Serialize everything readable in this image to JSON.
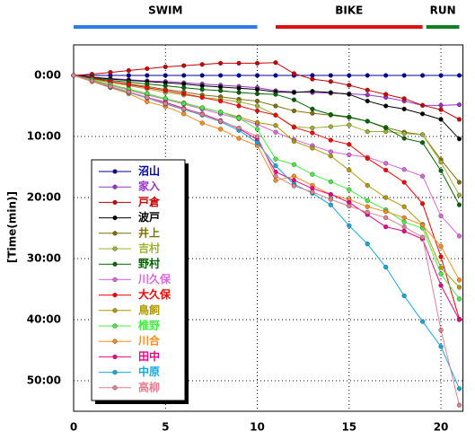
{
  "chart_data": {
    "type": "line",
    "y_label": "[Time(min)]",
    "x": [
      0,
      1,
      2,
      3,
      4,
      5,
      6,
      7,
      8,
      9,
      10,
      11,
      12,
      13,
      14,
      15,
      16,
      17,
      18,
      19,
      20,
      21
    ],
    "xlim": [
      0,
      21.2
    ],
    "xticks": [
      0,
      5,
      10,
      15,
      20
    ],
    "ylim": [
      55,
      -5
    ],
    "yticks": [
      {
        "value": 0,
        "label": "0:00"
      },
      {
        "value": 10,
        "label": "10:00"
      },
      {
        "value": 20,
        "label": "20:00"
      },
      {
        "value": 30,
        "label": "30:00"
      },
      {
        "value": 40,
        "label": "40:00"
      },
      {
        "value": 50,
        "label": "50:00"
      }
    ],
    "grid": true,
    "legend": "left",
    "phases": [
      {
        "name": "SWIM",
        "color": "#2f7be8",
        "start": 0,
        "end": 10
      },
      {
        "name": "BIKE",
        "color": "#e01010",
        "start": 11,
        "end": 19
      },
      {
        "name": "RUN",
        "color": "#108020",
        "start": 19.2,
        "end": 21
      }
    ],
    "series": [
      {
        "name": "沼山",
        "color": "#0000a0",
        "values": [
          0,
          0,
          0,
          0,
          0,
          0,
          0,
          0,
          0,
          0,
          0,
          0,
          0,
          0,
          0,
          0,
          0,
          0,
          0,
          0,
          0,
          0
        ]
      },
      {
        "name": "家入",
        "color": "#9933cc",
        "values": [
          0,
          0.3,
          0.5,
          0.7,
          0.9,
          1.0,
          1.2,
          1.4,
          1.6,
          1.8,
          2.0,
          2.5,
          2.7,
          2.8,
          2.9,
          3.0,
          3.2,
          3.6,
          4.2,
          4.9,
          4.9,
          4.8
        ]
      },
      {
        "name": "戸倉",
        "color": "#cc0000",
        "values": [
          0,
          -0.2,
          -0.5,
          -0.8,
          -1.1,
          -1.4,
          -1.6,
          -1.8,
          -2.0,
          -2.0,
          -2.0,
          -2.1,
          -0.3,
          0.6,
          1.0,
          1.6,
          2.4,
          3.1,
          3.8,
          4.9,
          5.6,
          7.2
        ]
      },
      {
        "name": "波戸",
        "color": "#000000",
        "values": [
          0,
          0.3,
          0.6,
          0.8,
          1.0,
          1.2,
          1.4,
          1.7,
          1.9,
          2.1,
          2.3,
          2.7,
          2.8,
          2.6,
          2.8,
          3.1,
          4.2,
          5.0,
          5.5,
          6.3,
          7.2,
          10.4
        ]
      },
      {
        "name": "井上",
        "color": "#807000",
        "values": [
          0,
          0.5,
          1.0,
          1.4,
          1.8,
          2.3,
          2.7,
          3.2,
          3.5,
          3.9,
          4.2,
          5.0,
          5.8,
          6.2,
          6.5,
          6.9,
          7.5,
          8.5,
          9.3,
          9.7,
          13.8,
          17.5
        ]
      },
      {
        "name": "吉村",
        "color": "#a0b030",
        "values": [
          0,
          0.6,
          1.2,
          1.7,
          2.2,
          2.8,
          3.2,
          3.6,
          3.9,
          4.3,
          5.0,
          6.5,
          8.4,
          8.6,
          8.4,
          8.1,
          9.2,
          9.2,
          9.5,
          9.7,
          14.2,
          19.6
        ]
      },
      {
        "name": "野村",
        "color": "#006400",
        "values": [
          0,
          0.4,
          0.8,
          1.1,
          1.4,
          1.7,
          2.0,
          2.3,
          2.5,
          2.8,
          3.0,
          3.1,
          4.0,
          5.5,
          6.4,
          6.8,
          7.5,
          8.6,
          10.3,
          11.0,
          15.6,
          21.2
        ]
      },
      {
        "name": "川久保",
        "color": "#dd66dd",
        "values": [
          0,
          0.8,
          1.6,
          2.4,
          3.2,
          3.9,
          4.7,
          5.5,
          6.3,
          7.1,
          8.0,
          9.3,
          10.5,
          11.5,
          12.5,
          13.0,
          13.4,
          14.4,
          15.4,
          16.5,
          23.0,
          26.3
        ]
      },
      {
        "name": "大久保",
        "color": "#ff0000",
        "values": [
          0,
          0.5,
          1.0,
          1.5,
          2.0,
          2.5,
          3.0,
          3.6,
          4.2,
          5.0,
          5.8,
          6.5,
          8.5,
          9.4,
          10.6,
          11.3,
          13.6,
          15.5,
          17.5,
          21.0,
          29.7,
          39.9
        ]
      },
      {
        "name": "鳥飼",
        "color": "#b09a00",
        "values": [
          0,
          0.8,
          1.5,
          2.2,
          3.0,
          3.8,
          4.5,
          5.3,
          6.0,
          6.8,
          7.7,
          8.2,
          10.8,
          11.9,
          13.2,
          15.5,
          18.0,
          20.0,
          21.5,
          24.4,
          31.5,
          34.7
        ]
      },
      {
        "name": "椎野",
        "color": "#44ee44",
        "values": [
          0,
          0.7,
          1.5,
          2.3,
          3.0,
          3.8,
          4.6,
          5.3,
          6.0,
          7.0,
          8.8,
          13.7,
          14.6,
          16.2,
          17.4,
          18.7,
          20.5,
          22.0,
          24.0,
          25.0,
          32.5,
          36.6
        ]
      },
      {
        "name": "川合",
        "color": "#ff8c1a",
        "values": [
          0,
          1.0,
          2.0,
          3.0,
          4.3,
          5.1,
          6.3,
          7.8,
          8.8,
          10.3,
          11.5,
          17.2,
          16.5,
          18.0,
          19.5,
          20.3,
          21.5,
          22.3,
          23.3,
          24.5,
          28.0,
          33.5
        ]
      },
      {
        "name": "田中",
        "color": "#ee0088",
        "values": [
          0,
          0.9,
          1.8,
          2.7,
          3.6,
          4.4,
          5.4,
          6.3,
          7.4,
          8.7,
          10.5,
          15.8,
          17.2,
          18.5,
          19.5,
          20.8,
          22.8,
          24.8,
          25.5,
          26.8,
          34.4,
          40.0
        ]
      },
      {
        "name": "中原",
        "color": "#11aadd",
        "values": [
          0,
          0.9,
          1.9,
          2.8,
          3.7,
          4.7,
          5.6,
          6.5,
          7.6,
          9.0,
          11.0,
          14.8,
          17.8,
          19.3,
          21.2,
          24.6,
          27.6,
          31.4,
          36.1,
          40.3,
          44.4,
          51.3
        ]
      },
      {
        "name": "高柳",
        "color": "#e08090",
        "values": [
          0,
          0.9,
          1.8,
          2.7,
          3.6,
          4.6,
          5.5,
          6.4,
          7.5,
          8.6,
          10.0,
          16.5,
          18.1,
          19.1,
          20.3,
          21.4,
          22.4,
          23.3,
          24.8,
          26.5,
          41.7,
          54.0
        ]
      }
    ]
  }
}
